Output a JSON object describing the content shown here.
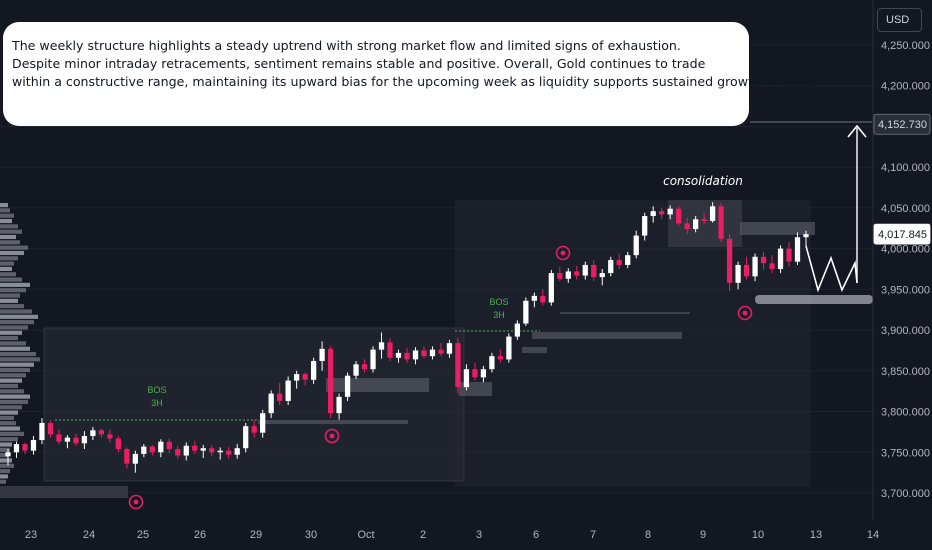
{
  "note": {
    "lines": [
      "The weekly structure highlights a steady uptrend with strong market flow and limited signs of exhaustion.",
      "Despite minor intraday retracements, sentiment remains stable and positive. Overall, Gold continues to trade",
      "within a constructive range, maintaining its upward bias for the upcoming week as liquidity supports sustained growth in value."
    ]
  },
  "currency_label": "USD",
  "labels": {
    "consolidation": "consolidation",
    "bos": "BOS",
    "tf": "3H"
  },
  "colors": {
    "background": "#131722",
    "bull": "#ffffff",
    "bear": "#e91e63",
    "grid": "#1e222d",
    "marker": "#e91e63"
  },
  "chart_data": {
    "type": "candlestick",
    "instrument": "Gold",
    "currency": "USD",
    "y_ticks": [
      3700,
      3750,
      3800,
      3850,
      3900,
      3950,
      4000,
      4050,
      4100,
      4150,
      4200,
      4250
    ],
    "y_tick_labels": [
      "3,700.000",
      "3,750.000",
      "3,800.000",
      "3,850.000",
      "3,900.000",
      "3,950.000",
      "4,000.000",
      "4,050.000",
      "4,100.000",
      "4,150.000",
      "4,200.000",
      "4,250.000"
    ],
    "ylim": [
      3682,
      4290
    ],
    "x_tick_labels": [
      "23",
      "24",
      "25",
      "26",
      "29",
      "30",
      "Oct",
      "2",
      "3",
      "6",
      "7",
      "8",
      "9",
      "10",
      "13",
      "14"
    ],
    "price_labels": [
      {
        "value": 4152.73,
        "text": "4,152.730",
        "style": "dark"
      },
      {
        "value": 4017.845,
        "text": "4,017.845",
        "style": "light"
      }
    ],
    "candles": [
      [
        3745,
        3754,
        3734,
        3750
      ],
      [
        3750,
        3763,
        3743,
        3760
      ],
      [
        3760,
        3762,
        3748,
        3752
      ],
      [
        3752,
        3770,
        3747,
        3765
      ],
      [
        3765,
        3792,
        3760,
        3786
      ],
      [
        3786,
        3789,
        3768,
        3772
      ],
      [
        3772,
        3778,
        3760,
        3763
      ],
      [
        3763,
        3771,
        3755,
        3768
      ],
      [
        3768,
        3773,
        3758,
        3761
      ],
      [
        3761,
        3776,
        3754,
        3770
      ],
      [
        3770,
        3781,
        3765,
        3777
      ],
      [
        3777,
        3779,
        3768,
        3772
      ],
      [
        3772,
        3778,
        3762,
        3767
      ],
      [
        3767,
        3770,
        3750,
        3754
      ],
      [
        3754,
        3756,
        3730,
        3736
      ],
      [
        3736,
        3752,
        3725,
        3748
      ],
      [
        3748,
        3760,
        3744,
        3757
      ],
      [
        3757,
        3759,
        3746,
        3750
      ],
      [
        3750,
        3766,
        3744,
        3763
      ],
      [
        3763,
        3767,
        3749,
        3754
      ],
      [
        3754,
        3758,
        3742,
        3746
      ],
      [
        3746,
        3762,
        3740,
        3758
      ],
      [
        3758,
        3764,
        3748,
        3752
      ],
      [
        3752,
        3759,
        3743,
        3755
      ],
      [
        3755,
        3759,
        3745,
        3750
      ],
      [
        3750,
        3756,
        3741,
        3752
      ],
      [
        3752,
        3757,
        3742,
        3747
      ],
      [
        3747,
        3760,
        3742,
        3755
      ],
      [
        3755,
        3786,
        3750,
        3782
      ],
      [
        3782,
        3790,
        3768,
        3774
      ],
      [
        3774,
        3802,
        3768,
        3798
      ],
      [
        3798,
        3826,
        3792,
        3822
      ],
      [
        3822,
        3835,
        3808,
        3813
      ],
      [
        3813,
        3843,
        3808,
        3838
      ],
      [
        3838,
        3850,
        3828,
        3846
      ],
      [
        3846,
        3848,
        3832,
        3839
      ],
      [
        3839,
        3866,
        3834,
        3862
      ],
      [
        3862,
        3886,
        3850,
        3877
      ],
      [
        3877,
        3880,
        3792,
        3798
      ],
      [
        3798,
        3822,
        3790,
        3818
      ],
      [
        3818,
        3848,
        3813,
        3844
      ],
      [
        3844,
        3862,
        3840,
        3858
      ],
      [
        3858,
        3864,
        3848,
        3852
      ],
      [
        3852,
        3880,
        3848,
        3876
      ],
      [
        3876,
        3897,
        3865,
        3885
      ],
      [
        3885,
        3890,
        3862,
        3866
      ],
      [
        3866,
        3876,
        3860,
        3872
      ],
      [
        3872,
        3878,
        3860,
        3864
      ],
      [
        3864,
        3879,
        3858,
        3875
      ],
      [
        3875,
        3880,
        3865,
        3868
      ],
      [
        3868,
        3880,
        3864,
        3876
      ],
      [
        3876,
        3884,
        3868,
        3871
      ],
      [
        3871,
        3888,
        3866,
        3884
      ],
      [
        3884,
        3890,
        3822,
        3830
      ],
      [
        3830,
        3858,
        3826,
        3852
      ],
      [
        3852,
        3860,
        3838,
        3842
      ],
      [
        3842,
        3856,
        3836,
        3852
      ],
      [
        3852,
        3872,
        3848,
        3868
      ],
      [
        3868,
        3876,
        3860,
        3864
      ],
      [
        3864,
        3896,
        3860,
        3892
      ],
      [
        3892,
        3912,
        3888,
        3908
      ],
      [
        3908,
        3940,
        3905,
        3936
      ],
      [
        3936,
        3946,
        3928,
        3942
      ],
      [
        3942,
        3950,
        3930,
        3934
      ],
      [
        3934,
        3974,
        3930,
        3970
      ],
      [
        3970,
        3978,
        3960,
        3963
      ],
      [
        3963,
        3976,
        3958,
        3972
      ],
      [
        3972,
        3979,
        3962,
        3967
      ],
      [
        3967,
        3984,
        3962,
        3980
      ],
      [
        3980,
        3986,
        3960,
        3965
      ],
      [
        3965,
        3975,
        3955,
        3970
      ],
      [
        3970,
        3990,
        3966,
        3986
      ],
      [
        3986,
        3994,
        3975,
        3980
      ],
      [
        3980,
        3996,
        3976,
        3992
      ],
      [
        3992,
        4022,
        3988,
        4016
      ],
      [
        4016,
        4044,
        4010,
        4040
      ],
      [
        4040,
        4052,
        4032,
        4046
      ],
      [
        4046,
        4050,
        4036,
        4042
      ],
      [
        4042,
        4053,
        4036,
        4049
      ],
      [
        4049,
        4052,
        4028,
        4031
      ],
      [
        4031,
        4038,
        4018,
        4024
      ],
      [
        4024,
        4040,
        4020,
        4036
      ],
      [
        4036,
        4044,
        4030,
        4034
      ],
      [
        4034,
        4057,
        4032,
        4052
      ],
      [
        4052,
        4056,
        4008,
        4012
      ],
      [
        4012,
        4018,
        3948,
        3958
      ],
      [
        3958,
        3984,
        3950,
        3980
      ],
      [
        3980,
        3990,
        3962,
        3966
      ],
      [
        3966,
        3994,
        3960,
        3990
      ],
      [
        3990,
        3996,
        3974,
        3982
      ],
      [
        3982,
        3992,
        3970,
        3975
      ],
      [
        3975,
        4004,
        3970,
        4000
      ],
      [
        4000,
        4008,
        3978,
        3984
      ],
      [
        3984,
        4020,
        3980,
        4014
      ],
      [
        4014,
        4022,
        4002,
        4017.8
      ]
    ]
  }
}
